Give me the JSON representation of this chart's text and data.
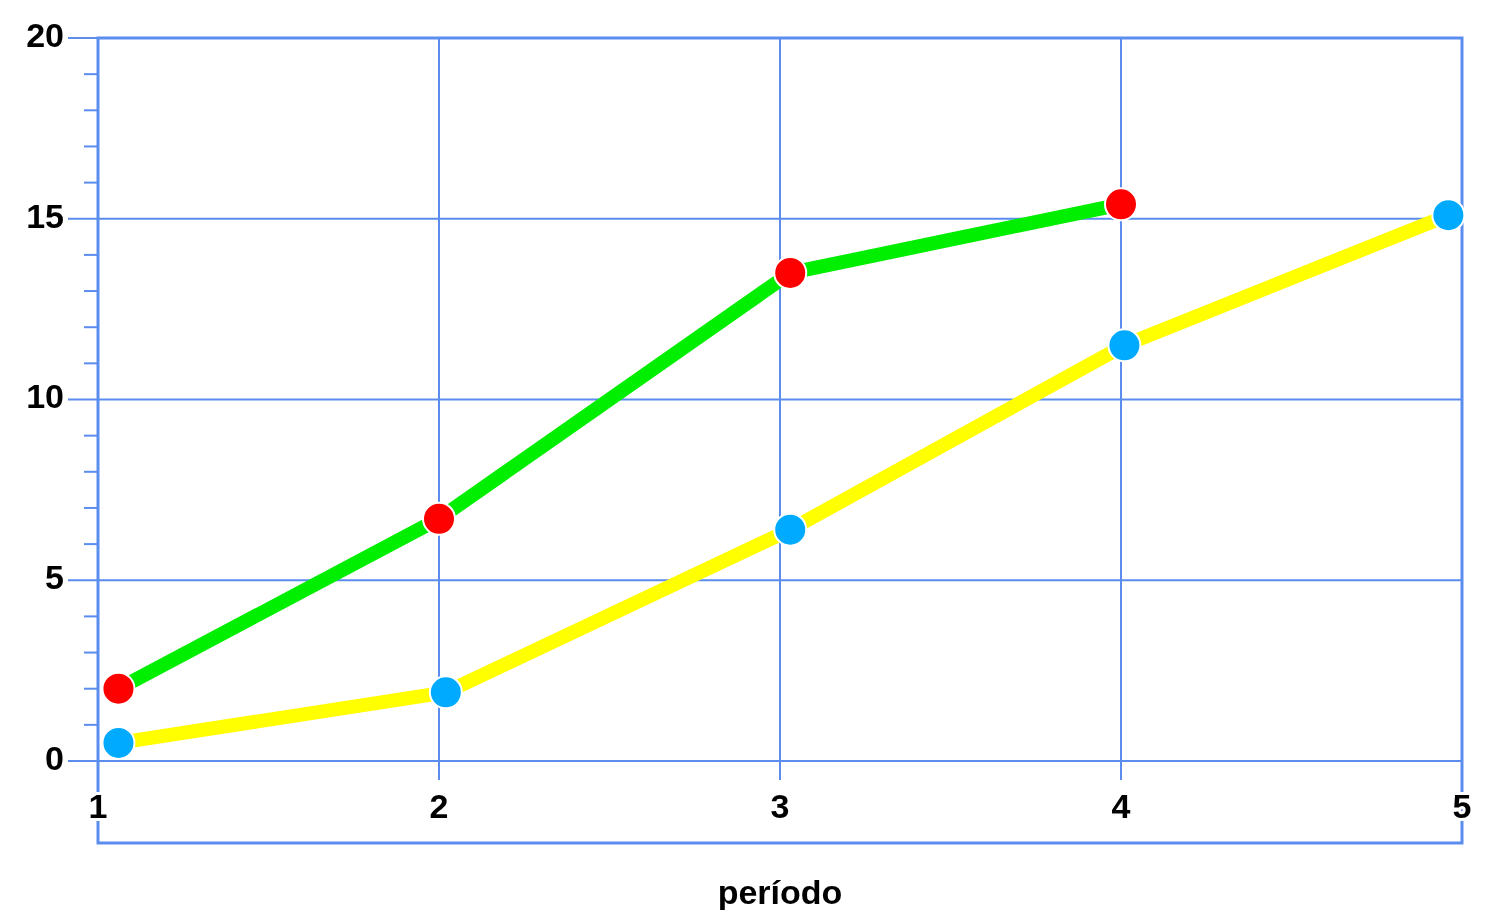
{
  "chart_data": {
    "type": "line",
    "xlabel": "período",
    "marker": "circle",
    "grid": true,
    "xlim": [
      1,
      5
    ],
    "xticks": [
      1,
      2,
      3,
      4,
      5
    ],
    "ylim": [
      0,
      20
    ],
    "yticks": [
      0,
      {
        "value": 1,
        "label": null
      },
      {
        "value": 2,
        "label": null
      },
      {
        "value": 3,
        "label": null
      },
      {
        "value": 4,
        "label": null
      },
      5,
      {
        "value": 6,
        "label": null
      },
      {
        "value": 7,
        "label": null
      },
      {
        "value": 8,
        "label": null
      },
      {
        "value": 9,
        "label": null
      },
      10,
      {
        "value": 11,
        "label": null
      },
      {
        "value": 12,
        "label": null
      },
      {
        "value": 13,
        "label": null
      },
      {
        "value": 14,
        "label": null
      },
      15,
      {
        "value": 16,
        "label": null
      },
      {
        "value": 17,
        "label": null
      },
      {
        "value": 18,
        "label": null
      },
      {
        "value": 19,
        "label": null
      },
      20
    ],
    "series": [
      {
        "color": "#00ee00",
        "colors": [
          "#ff0000",
          "#ff0000",
          "#ff0000",
          "#ff0000"
        ],
        "x": [
          1.06,
          2,
          3.03,
          4
        ],
        "values": [
          2,
          6.7,
          13.5,
          15.4
        ]
      },
      {
        "color": "#ffff00",
        "colors": [
          "#00aaff",
          "#00aaff",
          "#00aaff",
          "#00aaff",
          "#00aaff"
        ],
        "x": [
          1.06,
          2.02,
          3.03,
          4.01,
          4.96
        ],
        "values": [
          0.5,
          1.9,
          6.4,
          11.5,
          15.1
        ]
      }
    ]
  }
}
